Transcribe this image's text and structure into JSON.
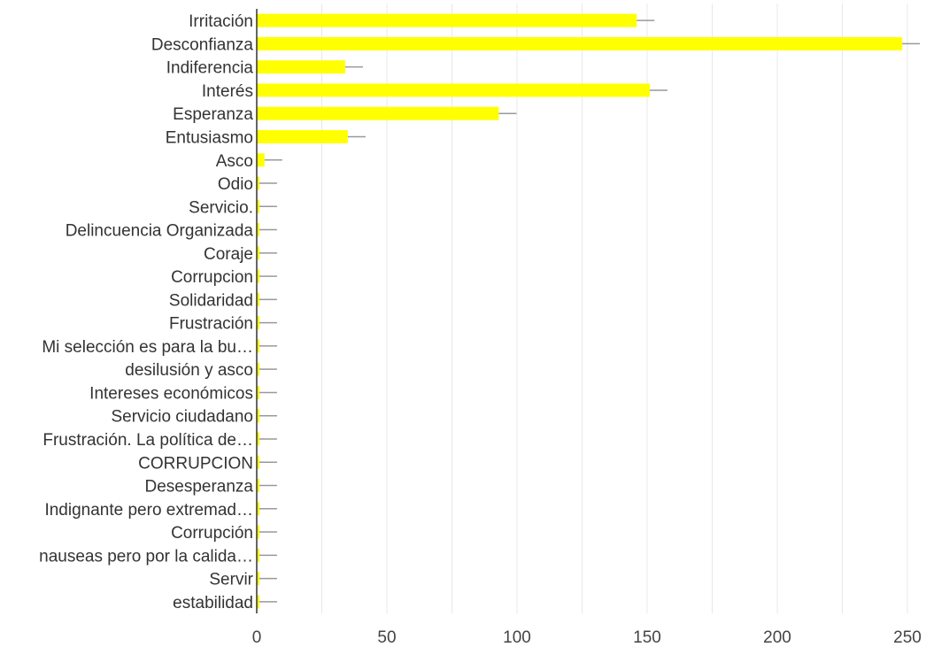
{
  "chart_data": {
    "type": "bar",
    "orientation": "horizontal",
    "categories": [
      "Irritación",
      "Desconfianza",
      "Indiferencia",
      "Interés",
      "Esperanza",
      "Entusiasmo",
      "Asco",
      "Odio",
      "Servicio.",
      "Delincuencia Organizada",
      "Coraje",
      "Corrupcion",
      "Solidaridad",
      "Frustración",
      "Mi selección es para la bu…",
      "desilusión y asco",
      "Intereses económicos",
      "Servicio ciudadano",
      "Frustración. La política de…",
      "CORRUPCION",
      "Desesperanza",
      "Indignante pero extremad…",
      "Corrupción",
      "nauseas pero por la calida…",
      "Servir",
      "estabilidad"
    ],
    "values": [
      146,
      248,
      34,
      151,
      93,
      35,
      3,
      1,
      1,
      1,
      1,
      1,
      1,
      1,
      1,
      1,
      1,
      1,
      1,
      1,
      1,
      1,
      1,
      1,
      1,
      1
    ],
    "xlim": [
      0,
      250
    ],
    "xticks": [
      "0",
      "50",
      "100",
      "150",
      "200",
      "250"
    ],
    "grid": "vertical",
    "colors": {
      "bar": "#ffff00",
      "error_line": "#999999",
      "grid": "#e8e8e8",
      "axis": "#333333"
    }
  }
}
